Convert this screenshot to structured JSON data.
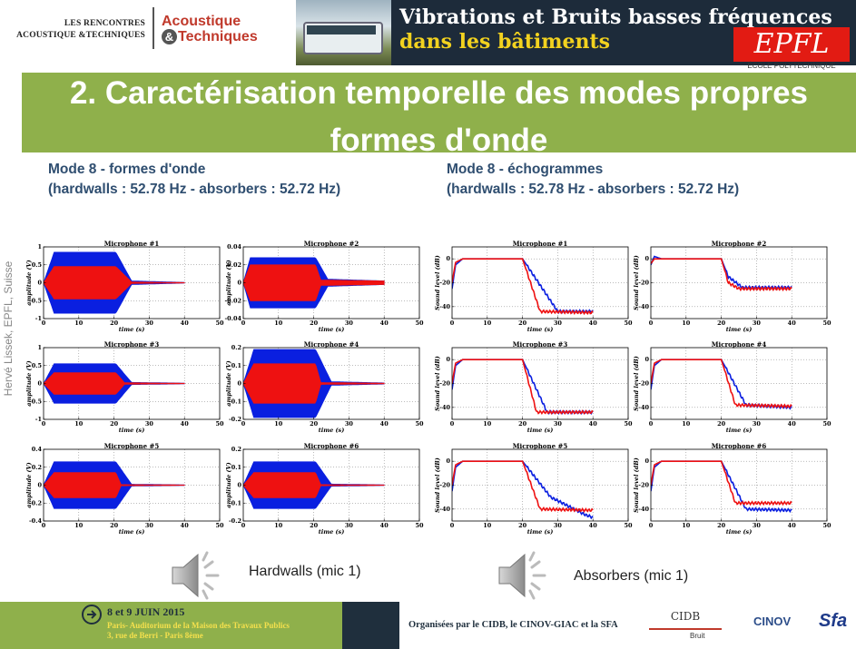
{
  "header": {
    "brand_small_line1": "LES RENCONTRES",
    "brand_small_line2": "ACOUSTIQUE &TECHNIQUES",
    "brand_big_line1": "Acoustique",
    "brand_big_amp": "&",
    "brand_big_line2": "Techniques",
    "banner_line1": "Vibrations et Bruits basses fréquences",
    "banner_line2": "dans les bâtiments",
    "epfl_logo": "EPFL",
    "epfl_sub": "ÉCOLE POLYTECHNIQUE"
  },
  "title": {
    "line1": "2. Caractérisation temporelle des modes propres",
    "line2": "formes d'onde"
  },
  "left_heading": {
    "line1": "Mode 8 - formes d'onde",
    "line2": "(hardwalls : 52.78 Hz - absorbers : 52.72 Hz)"
  },
  "right_heading": {
    "line1": "Mode 8 - échogrammes",
    "line2": "(hardwalls : 52.78 Hz - absorbers : 52.72 Hz)"
  },
  "side_credit": "Hervé Lissek, EPFL, Suisse",
  "audio": {
    "left_caption": "Hardwalls (mic 1)",
    "right_caption": "Absorbers (mic 1)",
    "icon": "speaker-icon"
  },
  "footer": {
    "date": "8 et 9 JUIN 2015",
    "place_line1": "Paris- Auditorium de la Maison des Travaux Publics",
    "place_line2": "3, rue de Berri - Paris 8ème",
    "organisers": "Organisées par le CIDB, le CINOV-GIAC et la SFA",
    "cidb": "CIDB",
    "cidb_sub": "Bruit",
    "cinov": "CINOV",
    "sfa": "Sfa"
  },
  "colors": {
    "title_band": "#8fb04b",
    "heading": "#2f4e70",
    "hardwalls": "#0a1fe0",
    "absorbers": "#ee1111"
  },
  "chart_data": [
    {
      "type": "area",
      "group": "waveforms",
      "title": "Microphone #1",
      "xlabel": "time (s)",
      "ylabel": "amplitude (V)",
      "xlim": [
        0,
        50
      ],
      "ylim": [
        -1,
        1
      ],
      "xticks": [
        0,
        10,
        20,
        30,
        40,
        50
      ],
      "yticks": [
        -1,
        -0.5,
        0,
        0.5,
        1
      ],
      "series": [
        {
          "name": "",
          "color": "#0a1fe0",
          "x": [
            0,
            3,
            20.5,
            25,
            40
          ],
          "amp": [
            0,
            0.85,
            0.85,
            0.05,
            0.01
          ]
        },
        {
          "name": "",
          "color": "#ee1111",
          "x": [
            0,
            3,
            20.5,
            25,
            40
          ],
          "amp": [
            0,
            0.45,
            0.45,
            0.02,
            0.005
          ]
        }
      ]
    },
    {
      "type": "area",
      "group": "waveforms",
      "title": "Microphone #2",
      "xlabel": "time (s)",
      "ylabel": "amplitude (V)",
      "xlim": [
        0,
        50
      ],
      "ylim": [
        -0.04,
        0.04
      ],
      "xticks": [
        0,
        10,
        20,
        30,
        40,
        50
      ],
      "yticks": [
        -0.04,
        -0.02,
        0,
        0.02,
        0.04
      ],
      "series": [
        {
          "name": "",
          "color": "#0a1fe0",
          "x": [
            0,
            2,
            20.5,
            24,
            40
          ],
          "amp": [
            0,
            0.028,
            0.028,
            0.004,
            0.002
          ]
        },
        {
          "name": "",
          "color": "#ee1111",
          "x": [
            0,
            2,
            20.5,
            22,
            40
          ],
          "amp": [
            0,
            0.02,
            0.02,
            0.003,
            0.002
          ]
        }
      ]
    },
    {
      "type": "area",
      "group": "waveforms",
      "title": "Microphone #3",
      "xlabel": "time (s)",
      "ylabel": "amplitude (V)",
      "xlim": [
        0,
        50
      ],
      "ylim": [
        -1,
        1
      ],
      "xticks": [
        0,
        10,
        20,
        30,
        40,
        50
      ],
      "yticks": [
        -1,
        -0.5,
        0,
        0.5,
        1
      ],
      "series": [
        {
          "name": "",
          "color": "#0a1fe0",
          "x": [
            0,
            3,
            20.5,
            25,
            40
          ],
          "amp": [
            0,
            0.55,
            0.55,
            0.03,
            0.01
          ]
        },
        {
          "name": "",
          "color": "#ee1111",
          "x": [
            0,
            3,
            20.5,
            23,
            40
          ],
          "amp": [
            0,
            0.3,
            0.3,
            0.02,
            0.005
          ]
        }
      ]
    },
    {
      "type": "area",
      "group": "waveforms",
      "title": "Microphone #4",
      "xlabel": "time (s)",
      "ylabel": "amplitude (V)",
      "xlim": [
        0,
        50
      ],
      "ylim": [
        -0.2,
        0.2
      ],
      "xticks": [
        0,
        10,
        20,
        30,
        40,
        50
      ],
      "yticks": [
        -0.2,
        -0.1,
        0,
        0.1,
        0.2
      ],
      "series": [
        {
          "name": "",
          "color": "#0a1fe0",
          "x": [
            0,
            3,
            20.5,
            25,
            40
          ],
          "amp": [
            0,
            0.19,
            0.19,
            0.01,
            0.003
          ]
        },
        {
          "name": "",
          "color": "#ee1111",
          "x": [
            0,
            3,
            20.5,
            22,
            40
          ],
          "amp": [
            0,
            0.11,
            0.11,
            0.005,
            0.002
          ]
        }
      ]
    },
    {
      "type": "area",
      "group": "waveforms",
      "title": "Microphone #5",
      "xlabel": "time (s)",
      "ylabel": "amplitude (V)",
      "xlim": [
        0,
        50
      ],
      "ylim": [
        -0.4,
        0.4
      ],
      "xticks": [
        0,
        10,
        20,
        30,
        40,
        50
      ],
      "yticks": [
        -0.4,
        -0.2,
        0,
        0.2,
        0.4
      ],
      "series": [
        {
          "name": "",
          "color": "#0a1fe0",
          "x": [
            0,
            3,
            20.5,
            25,
            40
          ],
          "amp": [
            0,
            0.26,
            0.26,
            0.01,
            0.004
          ]
        },
        {
          "name": "",
          "color": "#ee1111",
          "x": [
            0,
            3,
            20.5,
            22,
            40
          ],
          "amp": [
            0,
            0.14,
            0.14,
            0.006,
            0.002
          ]
        }
      ]
    },
    {
      "type": "area",
      "group": "waveforms",
      "title": "Microphone #6",
      "xlabel": "time (s)",
      "ylabel": "amplitude (V)",
      "xlim": [
        0,
        50
      ],
      "ylim": [
        -0.2,
        0.2
      ],
      "xticks": [
        0,
        10,
        20,
        30,
        40,
        50
      ],
      "yticks": [
        -0.2,
        -0.1,
        0,
        0.1,
        0.2
      ],
      "series": [
        {
          "name": "",
          "color": "#0a1fe0",
          "x": [
            0,
            3,
            20.5,
            25,
            40
          ],
          "amp": [
            0,
            0.13,
            0.13,
            0.006,
            0.002
          ]
        },
        {
          "name": "",
          "color": "#ee1111",
          "x": [
            0,
            3,
            20.5,
            22,
            40
          ],
          "amp": [
            0,
            0.07,
            0.07,
            0.003,
            0.001
          ]
        }
      ]
    },
    {
      "type": "line",
      "group": "echograms",
      "title": "Microphone #1",
      "xlabel": "time (s)",
      "ylabel": "Sound level (dB)",
      "xlim": [
        0,
        50
      ],
      "ylim": [
        -50,
        10
      ],
      "xticks": [
        0,
        10,
        20,
        30,
        40,
        50
      ],
      "yticks": [
        -40,
        -20,
        0
      ],
      "series": [
        {
          "name": "",
          "color": "#0a1fe0",
          "x": [
            0,
            1,
            3,
            20,
            30,
            40
          ],
          "y": [
            -25,
            -5,
            0,
            0,
            -44,
            -44
          ]
        },
        {
          "name": "",
          "color": "#ee1111",
          "x": [
            0,
            1,
            3,
            20,
            25,
            40
          ],
          "y": [
            -20,
            -3,
            0,
            0,
            -44,
            -45
          ]
        }
      ]
    },
    {
      "type": "line",
      "group": "echograms",
      "title": "Microphone #2",
      "xlabel": "time (s)",
      "ylabel": "Sound level (dB)",
      "xlim": [
        0,
        50
      ],
      "ylim": [
        -50,
        10
      ],
      "xticks": [
        0,
        10,
        20,
        30,
        40,
        50
      ],
      "yticks": [
        -40,
        -20,
        0
      ],
      "series": [
        {
          "name": "",
          "color": "#0a1fe0",
          "x": [
            0,
            1,
            3,
            20,
            22,
            26,
            40
          ],
          "y": [
            -5,
            2,
            0,
            0,
            -15,
            -24,
            -24
          ]
        },
        {
          "name": "",
          "color": "#ee1111",
          "x": [
            0,
            1,
            3,
            20,
            22,
            25,
            40
          ],
          "y": [
            -4,
            0,
            0,
            0,
            -20,
            -25,
            -25
          ]
        }
      ]
    },
    {
      "type": "line",
      "group": "echograms",
      "title": "Microphone #3",
      "xlabel": "time (s)",
      "ylabel": "Sound level (dB)",
      "xlim": [
        0,
        50
      ],
      "ylim": [
        -50,
        10
      ],
      "xticks": [
        0,
        10,
        20,
        30,
        40,
        50
      ],
      "yticks": [
        -40,
        -20,
        0
      ],
      "series": [
        {
          "name": "",
          "color": "#0a1fe0",
          "x": [
            0,
            1,
            3,
            20,
            27,
            40
          ],
          "y": [
            -25,
            -5,
            0,
            0,
            -44,
            -44
          ]
        },
        {
          "name": "",
          "color": "#ee1111",
          "x": [
            0,
            1,
            3,
            20,
            24,
            40
          ],
          "y": [
            -20,
            -3,
            0,
            0,
            -44,
            -44
          ]
        }
      ]
    },
    {
      "type": "line",
      "group": "echograms",
      "title": "Microphone #4",
      "xlabel": "time (s)",
      "ylabel": "Sound level (dB)",
      "xlim": [
        0,
        50
      ],
      "ylim": [
        -50,
        10
      ],
      "xticks": [
        0,
        10,
        20,
        30,
        40,
        50
      ],
      "yticks": [
        -40,
        -20,
        0
      ],
      "series": [
        {
          "name": "",
          "color": "#0a1fe0",
          "x": [
            0,
            1,
            3,
            20,
            27,
            40
          ],
          "y": [
            -25,
            -5,
            0,
            0,
            -38,
            -40
          ]
        },
        {
          "name": "",
          "color": "#ee1111",
          "x": [
            0,
            1,
            3,
            20,
            24,
            40
          ],
          "y": [
            -20,
            -3,
            0,
            0,
            -38,
            -39
          ]
        }
      ]
    },
    {
      "type": "line",
      "group": "echograms",
      "title": "Microphone #5",
      "xlabel": "time (s)",
      "ylabel": "Sound level (dB)",
      "xlim": [
        0,
        50
      ],
      "ylim": [
        -50,
        10
      ],
      "xticks": [
        0,
        10,
        20,
        30,
        40,
        50
      ],
      "yticks": [
        -40,
        -20,
        0
      ],
      "series": [
        {
          "name": "",
          "color": "#0a1fe0",
          "x": [
            0,
            1,
            3,
            20,
            28,
            38,
            40
          ],
          "y": [
            -25,
            -5,
            0,
            0,
            -30,
            -45,
            -47
          ]
        },
        {
          "name": "",
          "color": "#ee1111",
          "x": [
            0,
            1,
            3,
            20,
            25,
            40
          ],
          "y": [
            -20,
            -3,
            0,
            0,
            -40,
            -41
          ]
        }
      ]
    },
    {
      "type": "line",
      "group": "echograms",
      "title": "Microphone #6",
      "xlabel": "time (s)",
      "ylabel": "Sound level (dB)",
      "xlim": [
        0,
        50
      ],
      "ylim": [
        -50,
        10
      ],
      "xticks": [
        0,
        10,
        20,
        30,
        40,
        50
      ],
      "yticks": [
        -40,
        -20,
        0
      ],
      "series": [
        {
          "name": "",
          "color": "#0a1fe0",
          "x": [
            0,
            1,
            3,
            20,
            27,
            40
          ],
          "y": [
            -25,
            -5,
            0,
            0,
            -40,
            -41
          ]
        },
        {
          "name": "",
          "color": "#ee1111",
          "x": [
            0,
            1,
            3,
            20,
            24,
            40
          ],
          "y": [
            -20,
            -3,
            0,
            0,
            -35,
            -35
          ]
        }
      ]
    }
  ]
}
